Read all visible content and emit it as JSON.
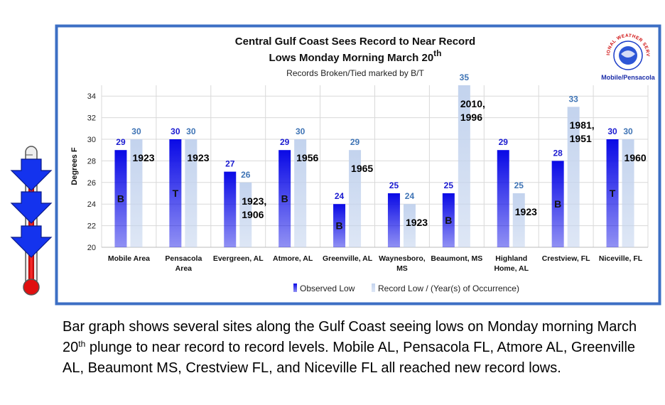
{
  "chart_data": {
    "type": "bar",
    "title_line1": "Central Gulf Coast Sees Record to Near Record",
    "title_line2": "Lows Monday Morning March 20",
    "title_line2_sup": "th",
    "subtitle": "Records Broken/Tied marked by B/T",
    "y_label": "Degrees F",
    "categories": [
      "Mobile Area",
      "Pensacola\nArea",
      "Evergreen, AL",
      "Atmore, AL",
      "Greenville, AL",
      "Waynesboro,\nMS",
      "Beaumont, MS",
      "Highland\nHome, AL",
      "Crestview, FL",
      "Niceville, FL"
    ],
    "series": [
      {
        "name": "Observed Low",
        "color": "#0a0ae6",
        "values": [
          29,
          30,
          27,
          29,
          24,
          25,
          25,
          29,
          28,
          30
        ],
        "markers": [
          "B",
          "T",
          null,
          "B",
          "B",
          null,
          "B",
          null,
          "B",
          "T"
        ]
      },
      {
        "name": "Record Low / (Year(s) of Occurrence)",
        "color": "#c3d3ee",
        "values": [
          30,
          30,
          26,
          30,
          29,
          24,
          35,
          25,
          33,
          30
        ],
        "years": [
          "1923",
          "1923",
          "1923,\n1906",
          "1956",
          "1965",
          "1923",
          "2010,\n1996",
          "1923",
          "1981,\n1951",
          "1960"
        ]
      }
    ],
    "ylim": [
      20,
      35
    ],
    "yticks": [
      20,
      22,
      24,
      26,
      28,
      30,
      32,
      34
    ],
    "grid": true,
    "legend": "bottom",
    "logo_text": "NATIONAL WEATHER SERVICE",
    "logo_office": "Mobile/Pensacola"
  },
  "caption": {
    "before": "Bar graph shows several sites along the Gulf Coast seeing lows on Monday morning March 20",
    "sup": "th",
    "after": " plunge to near record to record levels. Mobile AL, Pensacola FL, Atmore AL, Greenville AL, Beaumont MS, Crestview FL, and Niceville FL all reached new record lows."
  }
}
